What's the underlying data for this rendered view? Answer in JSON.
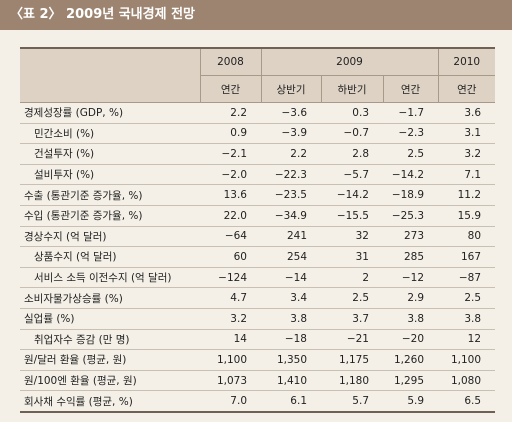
{
  "title": "〈표 2〉 2009년 국내경제 전망",
  "table": {
    "header": [
      [
        "2008",
        "2009",
        "2010"
      ],
      [
        "연간",
        "상반기",
        "하반기",
        "연간",
        "연간"
      ]
    ],
    "rows": [
      [
        "경제성장률 (GDP, %)",
        "2.2",
        "−3.6",
        "0.3",
        "−1.7",
        "3.6"
      ],
      [
        "민간소비 (%)",
        "0.9",
        "−3.9",
        "−0.7",
        "−2.3",
        "3.1"
      ],
      [
        "건설투자 (%)",
        "−2.1",
        "2.2",
        "2.8",
        "2.5",
        "3.2"
      ],
      [
        "설비투자 (%)",
        "−2.0",
        "−22.3",
        "−5.7",
        "−14.2",
        "7.1"
      ],
      [
        "수출 (통관기준 증가율, %)",
        "13.6",
        "−23.5",
        "−14.2",
        "−18.9",
        "11.2"
      ],
      [
        "수입 (통관기준 증가율, %)",
        "22.0",
        "−34.9",
        "−15.5",
        "−25.3",
        "15.9"
      ],
      [
        "경상수지 (억 달러)",
        "−64",
        "241",
        "32",
        "273",
        "80"
      ],
      [
        "상품수지 (억 달러)",
        "60",
        "254",
        "31",
        "285",
        "167"
      ],
      [
        "서비스 소득 이전수지 (억 달러)",
        "−124",
        "−14",
        "2",
        "−12",
        "−87"
      ],
      [
        "소비자물가상승률 (%)",
        "4.7",
        "3.4",
        "2.5",
        "2.9",
        "2.5"
      ],
      [
        "실업률 (%)",
        "3.2",
        "3.8",
        "3.7",
        "3.8",
        "3.8"
      ],
      [
        "취업자수 증감 (만 명)",
        "14",
        "−18",
        "−21",
        "−20",
        "12"
      ],
      [
        "원/달러 환율 (평균, 원)",
        "1,100",
        "1,350",
        "1,175",
        "1,260",
        "1,100"
      ],
      [
        "원/100엔 환율 (평균, 원)",
        "1,073",
        "1,410",
        "1,180",
        "1,295",
        "1,080"
      ],
      [
        "회사채 수익률 (평균, %)",
        "7.0",
        "6.1",
        "5.7",
        "5.9",
        "6.5"
      ]
    ]
  }
}
